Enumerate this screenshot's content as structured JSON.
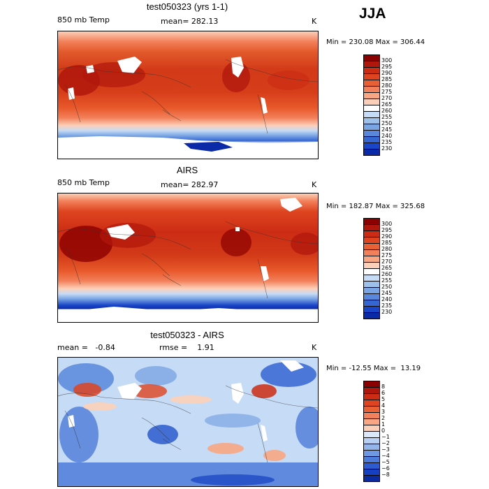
{
  "season": "JJA",
  "panels": [
    {
      "title": "test050323 (yrs 1-1)",
      "left": "850 mb Temp",
      "center": "mean= 282.13",
      "right": "K",
      "minmax": "Min = 230.08 Max = 306.44",
      "colorbar": {
        "labels": [
          "300",
          "295",
          "290",
          "285",
          "280",
          "275",
          "270",
          "265",
          "260",
          "255",
          "250",
          "245",
          "240",
          "235",
          "230"
        ],
        "colors": [
          "#8b0000",
          "#b0170c",
          "#cc2c14",
          "#de4420",
          "#ea6035",
          "#f2805a",
          "#f8a684",
          "#fcd0b8",
          "#ffffff",
          "#c6dbf5",
          "#9ec1ec",
          "#7aa5e4",
          "#5887dc",
          "#3566d2",
          "#1945c8",
          "#0a2aa8"
        ]
      }
    },
    {
      "title": "AIRS",
      "left": "850 mb Temp",
      "center": "mean= 282.97",
      "right": "K",
      "minmax": "Min = 182.87 Max = 325.68",
      "colorbar": {
        "labels": [
          "300",
          "295",
          "290",
          "285",
          "280",
          "275",
          "270",
          "265",
          "260",
          "255",
          "250",
          "245",
          "240",
          "235",
          "230"
        ],
        "colors": [
          "#8b0000",
          "#b0170c",
          "#cc2c14",
          "#de4420",
          "#ea6035",
          "#f2805a",
          "#f8a684",
          "#fcd0b8",
          "#ffffff",
          "#c6dbf5",
          "#9ec1ec",
          "#7aa5e4",
          "#5887dc",
          "#3566d2",
          "#1945c8",
          "#0a2aa8"
        ]
      }
    },
    {
      "title": "test050323 - AIRS",
      "left": "mean =   -0.84",
      "center": "rmse =    1.91",
      "right": "K",
      "minmax": "Min = -12.55 Max =  13.19",
      "colorbar": {
        "labels": [
          "8",
          "6",
          "5",
          "4",
          "3",
          "2",
          "1",
          "0",
          "−1",
          "−2",
          "−3",
          "−4",
          "−5",
          "−6",
          "−8"
        ],
        "colors": [
          "#8b0000",
          "#b0170c",
          "#cc2c14",
          "#de4420",
          "#ea6035",
          "#f2805a",
          "#f8a684",
          "#fcd0b8",
          "#dbe8fa",
          "#b8d0f3",
          "#93b5eb",
          "#6f98e2",
          "#4d7bd9",
          "#2c5ccf",
          "#1540c2",
          "#0a2aa0"
        ]
      }
    }
  ]
}
